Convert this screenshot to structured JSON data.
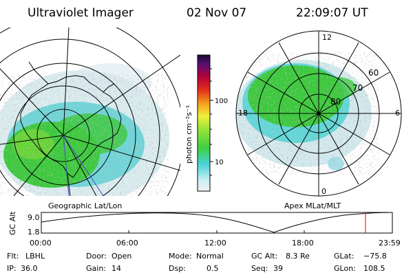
{
  "header": {
    "instrument": "Ultraviolet Imager",
    "date": "02 Nov 07",
    "time": "22:09:07 UT"
  },
  "panels": {
    "geographic_label": "Geographic Lat/Lon",
    "apex_label": "Apex MLat/MLT"
  },
  "apex_grid": {
    "mlt_labels": {
      "top": "12",
      "left": "18",
      "right": "6",
      "bottom": "0"
    },
    "mlat_labels": [
      "60",
      "70",
      "80"
    ]
  },
  "colorbar": {
    "unit_label": "photon cm⁻²s⁻¹",
    "ticks": [
      "100",
      "10"
    ]
  },
  "altitude_plot": {
    "ylabel": "GC Alt",
    "yticks": [
      "9.0",
      "1.8"
    ],
    "xticks": [
      "00:00",
      "06:00",
      "12:00",
      "18:00",
      "23:59"
    ],
    "marker_color": "#e8261c"
  },
  "status": {
    "row1": [
      {
        "label": "Flt:",
        "value": "LBHL"
      },
      {
        "label": "Door:",
        "value": "Open"
      },
      {
        "label": "Mode:",
        "value": "Normal"
      },
      {
        "label": "GC Alt:",
        "value": "8.3 Re"
      },
      {
        "label": "GLat:",
        "value": "−75.8"
      }
    ],
    "row2": [
      {
        "label": "IP:",
        "value": "36.0"
      },
      {
        "label": "Gain:",
        "value": "14"
      },
      {
        "label": "Dsp:",
        "value": "0.5"
      },
      {
        "label": "Seq:",
        "value": "39"
      },
      {
        "label": "GLon:",
        "value": "108.5"
      }
    ]
  },
  "colors": {
    "aurora_green": "#3ec93e",
    "aurora_cyan": "#4fd3d3",
    "aurora_pale": "#b8e0e6"
  }
}
